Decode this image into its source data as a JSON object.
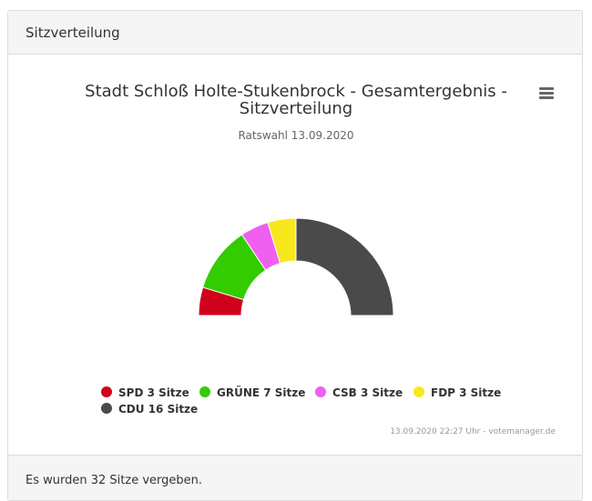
{
  "panel": {
    "heading": "Sitzverteilung",
    "footer_text": "Es wurden 32 Sitze vergeben."
  },
  "chart_data": {
    "type": "pie",
    "variant": "semicircle-donut",
    "title_lines": [
      "Stadt Schloß Holte-Stukenbrock - Gesamtergebnis -",
      "Sitzverteilung"
    ],
    "subtitle": "Ratswahl 13.09.2020",
    "credits": "13.09.2020 22:27 Uhr - votemanager.de",
    "series": [
      {
        "name": "SPD",
        "value": 3,
        "label": "SPD 3 Sitze",
        "color": "#d0021b"
      },
      {
        "name": "GRÜNE",
        "value": 7,
        "label": "GRÜNE 7 Sitze",
        "color": "#33cc00"
      },
      {
        "name": "CSB",
        "value": 3,
        "label": "CSB 3 Sitze",
        "color": "#f060f0"
      },
      {
        "name": "FDP",
        "value": 3,
        "label": "FDP 3 Sitze",
        "color": "#f8e71c"
      },
      {
        "name": "CDU",
        "value": 16,
        "label": "CDU 16 Sitze",
        "color": "#4a4a4a"
      }
    ],
    "legend_position": "bottom"
  },
  "icons": {
    "menu": "hamburger-menu-icon"
  }
}
